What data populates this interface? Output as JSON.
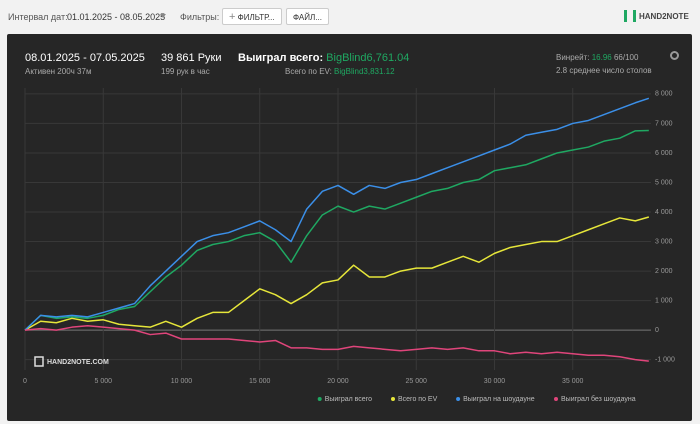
{
  "toolbar": {
    "date_label": "Интервал дат:",
    "date_range": "01.01.2025 - 08.05.2025",
    "filters_label": "Фильтры:",
    "filter_button": "ФИЛЬТР...",
    "file_button": "ФАЙЛ...",
    "logo": "HAND2NOTE"
  },
  "stats": {
    "period": "08.01.2025 - 07.05.2025",
    "active": "Активен 200ч 37м",
    "hands": "39 861 Руки",
    "hands_per_hour": "199 рук в час",
    "won_label": "Выиграл всего:",
    "won_value": "BigBlind6,761.04",
    "ev_label": "Всего по EV:",
    "ev_value": "BigBlind3,831.12",
    "winrate_label": "Винрейт:",
    "winrate_value": "16.96",
    "winrate_unit": "66/100",
    "tables": "2.8 среднее число столов"
  },
  "chart_data": {
    "type": "line",
    "watermark": "HAND2NOTE.COM",
    "x": [
      0,
      1000,
      2000,
      3000,
      4000,
      5000,
      6000,
      7000,
      8000,
      9000,
      10000,
      11000,
      12000,
      13000,
      14000,
      15000,
      16000,
      17000,
      18000,
      19000,
      20000,
      21000,
      22000,
      23000,
      24000,
      25000,
      26000,
      27000,
      28000,
      29000,
      30000,
      31000,
      32000,
      33000,
      34000,
      35000,
      36000,
      37000,
      38000,
      39000,
      39861
    ],
    "series": [
      {
        "name": "Выиграл всего",
        "color": "#1fa862",
        "values": [
          0,
          500,
          400,
          450,
          400,
          500,
          700,
          800,
          1300,
          1800,
          2200,
          2700,
          2900,
          3000,
          3200,
          3300,
          3000,
          2300,
          3200,
          3900,
          4200,
          4000,
          4200,
          4100,
          4300,
          4500,
          4700,
          4800,
          5000,
          5100,
          5400,
          5500,
          5600,
          5800,
          6000,
          6100,
          6200,
          6400,
          6500,
          6750,
          6761
        ]
      },
      {
        "name": "Всего по EV",
        "color": "#e6e63a",
        "values": [
          0,
          300,
          250,
          400,
          300,
          350,
          200,
          150,
          100,
          300,
          100,
          400,
          600,
          600,
          1000,
          1400,
          1200,
          900,
          1200,
          1600,
          1700,
          2200,
          1800,
          1800,
          2000,
          2100,
          2100,
          2300,
          2500,
          2300,
          2600,
          2800,
          2900,
          3000,
          3000,
          3200,
          3400,
          3600,
          3800,
          3700,
          3831
        ]
      },
      {
        "name": "Выиграл на шоудауне",
        "color": "#3b8fe8",
        "values": [
          0,
          500,
          450,
          500,
          450,
          600,
          750,
          900,
          1500,
          2000,
          2500,
          3000,
          3200,
          3300,
          3500,
          3700,
          3400,
          3000,
          4100,
          4700,
          4900,
          4600,
          4900,
          4800,
          5000,
          5100,
          5300,
          5500,
          5700,
          5900,
          6100,
          6300,
          6600,
          6700,
          6800,
          7000,
          7100,
          7300,
          7500,
          7700,
          7850
        ]
      },
      {
        "name": "Выиграл без шоудауна",
        "color": "#e0457b",
        "values": [
          0,
          50,
          0,
          100,
          150,
          100,
          50,
          0,
          -150,
          -100,
          -300,
          -300,
          -300,
          -300,
          -350,
          -400,
          -350,
          -600,
          -600,
          -650,
          -650,
          -550,
          -600,
          -650,
          -700,
          -650,
          -600,
          -650,
          -600,
          -700,
          -700,
          -800,
          -750,
          -800,
          -750,
          -800,
          -850,
          -850,
          -900,
          -1000,
          -1050
        ]
      }
    ],
    "xlim": [
      0,
      40000
    ],
    "ylim": [
      -1350,
      8200
    ],
    "xticks": [
      0,
      {
        "value": 5000,
        "label": "5 000"
      },
      {
        "value": 10000,
        "label": "10 000"
      },
      {
        "value": 15000,
        "label": "15 000"
      },
      {
        "value": 20000,
        "label": "20 000"
      },
      {
        "value": 25000,
        "label": "25 000"
      },
      {
        "value": 30000,
        "label": "30 000"
      },
      {
        "value": 35000,
        "label": "35 000"
      }
    ],
    "yticks": [
      {
        "value": -1000,
        "label": "-1 000"
      },
      0,
      {
        "value": 1000,
        "label": "1 000"
      },
      {
        "value": 2000,
        "label": "2 000"
      },
      {
        "value": 3000,
        "label": "3 000"
      },
      {
        "value": 4000,
        "label": "4 000"
      },
      {
        "value": 5000,
        "label": "5 000"
      },
      {
        "value": 6000,
        "label": "6 000"
      },
      {
        "value": 7000,
        "label": "7 000"
      },
      {
        "value": 8000,
        "label": "8 000"
      }
    ],
    "grid": true,
    "legend": "bottom-right"
  }
}
